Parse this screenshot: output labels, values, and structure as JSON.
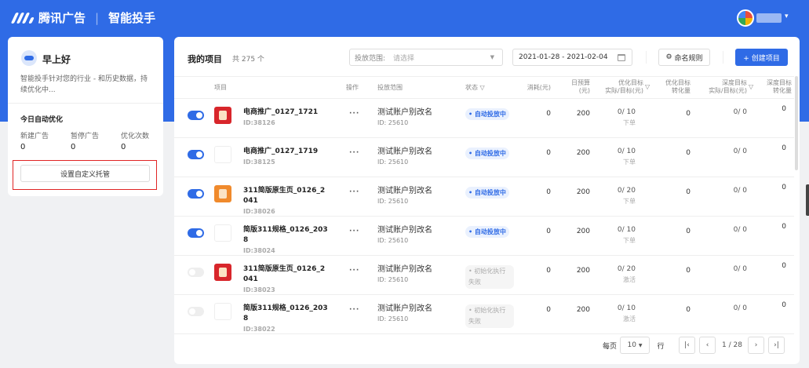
{
  "header": {
    "brand": "腾讯广告",
    "product": "智能投手"
  },
  "left": {
    "greeting": "早上好",
    "description": "智能投手针对您的行业 - 和历史数据，持续优化中...",
    "today_title": "今日自动优化",
    "stats": [
      {
        "label": "新建广告",
        "value": "0"
      },
      {
        "label": "暂停广告",
        "value": "0"
      },
      {
        "label": "优化次数",
        "value": "0"
      }
    ],
    "custom_button": "设置自定义托管"
  },
  "main": {
    "title": "我的项目",
    "count": "共 275 个",
    "scope_label": "投放范围:",
    "scope_placeholder": "请选择",
    "date_range": "2021-01-28 - 2021-02-04",
    "naming_rule": "命名规则",
    "create": "+ 创建项目",
    "columns": {
      "project": "项目",
      "ops": "操作",
      "scope": "投放范围",
      "status": "状态",
      "cost": "消耗(元)",
      "budget1": "日预算",
      "budget2": "(元)",
      "opt1": "优化目标",
      "opt2": "实际/目标(元)",
      "conv1": "优化目标",
      "conv2": "转化量",
      "deep1": "深度目标",
      "deep2": "实际/目标(元)",
      "dconv1": "深度目标",
      "dconv2": "转化量"
    },
    "rows": [
      {
        "on": true,
        "thumb": "red",
        "name": "电商推广_0127_1721",
        "id": "ID:38126",
        "scope": "测试账户别改名",
        "scope_id": "ID: 25610",
        "status": "自动投放中",
        "fail": false,
        "cost": "0",
        "budget": "200",
        "opt": "0/ 10",
        "opt_type": "下单",
        "conv": "0",
        "deep": "0/ 0",
        "dconv": "0"
      },
      {
        "on": true,
        "thumb": "blank",
        "name": "电商推广_0127_1719",
        "id": "ID:38125",
        "scope": "测试账户别改名",
        "scope_id": "ID: 25610",
        "status": "自动投放中",
        "fail": false,
        "cost": "0",
        "budget": "200",
        "opt": "0/ 10",
        "opt_type": "下单",
        "conv": "0",
        "deep": "0/ 0",
        "dconv": "0"
      },
      {
        "on": true,
        "thumb": "orange",
        "name": "311简版原生页_0126_2041",
        "id": "ID:38026",
        "scope": "测试账户别改名",
        "scope_id": "ID: 25610",
        "status": "自动投放中",
        "fail": false,
        "cost": "0",
        "budget": "200",
        "opt": "0/ 20",
        "opt_type": "下单",
        "conv": "0",
        "deep": "0/ 0",
        "dconv": "0"
      },
      {
        "on": true,
        "thumb": "blank",
        "name": "简版311规格_0126_2038",
        "id": "ID:38024",
        "scope": "测试账户别改名",
        "scope_id": "ID: 25610",
        "status": "自动投放中",
        "fail": false,
        "cost": "0",
        "budget": "200",
        "opt": "0/ 10",
        "opt_type": "下单",
        "conv": "0",
        "deep": "0/ 0",
        "dconv": "0"
      },
      {
        "on": false,
        "thumb": "red",
        "name": "311简版原生页_0126_2041",
        "id": "ID:38023",
        "scope": "测试账户别改名",
        "scope_id": "ID: 25610",
        "status": "初始化执行失败",
        "fail": true,
        "cost": "0",
        "budget": "200",
        "opt": "0/ 20",
        "opt_type": "激活",
        "conv": "0",
        "deep": "0/ 0",
        "dconv": "0"
      },
      {
        "on": false,
        "thumb": "blank",
        "name": "简版311规格_0126_2038",
        "id": "ID:38022",
        "scope": "测试账户别改名",
        "scope_id": "ID: 25610",
        "status": "初始化执行失败",
        "fail": true,
        "cost": "0",
        "budget": "200",
        "opt": "0/ 10",
        "opt_type": "激活",
        "conv": "0",
        "deep": "0/ 0",
        "dconv": "0"
      }
    ],
    "pagination": {
      "per_page_label": "每页",
      "per_page": "10",
      "rows_label": "行",
      "page": "1 / 28"
    }
  },
  "colors": {
    "brand": "#2f6be6",
    "highlight": "#e02424"
  }
}
